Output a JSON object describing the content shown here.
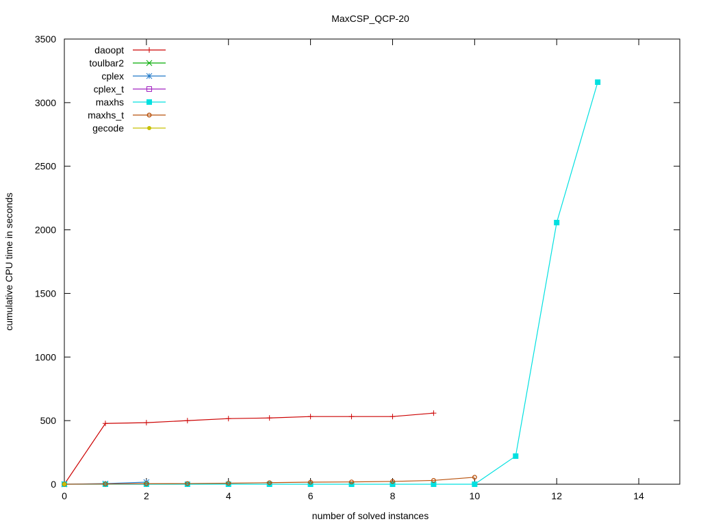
{
  "chart_data": {
    "type": "line",
    "title": "MaxCSP_QCP-20",
    "xlabel": "number of solved instances",
    "ylabel": "cumulative CPU time in seconds",
    "xlim": [
      0,
      15
    ],
    "ylim": [
      0,
      3500
    ],
    "xticks": [
      0,
      2,
      4,
      6,
      8,
      10,
      12,
      14
    ],
    "yticks": [
      0,
      500,
      1000,
      1500,
      2000,
      2500,
      3000,
      3500
    ],
    "grid": false,
    "legend_position": "top-left",
    "series": [
      {
        "name": "daoopt",
        "color": "#cc0000",
        "marker": "plus",
        "x": [
          0,
          1,
          2,
          3,
          4,
          5,
          6,
          7,
          8,
          9
        ],
        "values": [
          0,
          478,
          484,
          500,
          516,
          521,
          532,
          532,
          532,
          559
        ]
      },
      {
        "name": "toulbar2",
        "color": "#00aa00",
        "marker": "cross",
        "x": [
          0
        ],
        "values": [
          0
        ]
      },
      {
        "name": "cplex",
        "color": "#1f78c8",
        "marker": "star",
        "x": [
          0,
          1,
          2
        ],
        "values": [
          0,
          5,
          16
        ]
      },
      {
        "name": "cplex_t",
        "color": "#a020c0",
        "marker": "open-square",
        "x": [
          0
        ],
        "values": [
          0
        ]
      },
      {
        "name": "maxhs",
        "color": "#00e0e0",
        "marker": "filled-square",
        "x": [
          0,
          1,
          2,
          3,
          4,
          5,
          6,
          7,
          8,
          9,
          10,
          11,
          12,
          13
        ],
        "values": [
          0,
          0,
          0,
          0,
          0,
          0,
          0,
          0,
          0,
          0,
          0,
          221,
          2057,
          3161
        ]
      },
      {
        "name": "maxhs_t",
        "color": "#b8500a",
        "marker": "open-circle",
        "x": [
          0,
          1,
          2,
          3,
          4,
          5,
          6,
          7,
          8,
          9,
          10
        ],
        "values": [
          0,
          2,
          4,
          5,
          8,
          12,
          16,
          18,
          22,
          30,
          55
        ]
      },
      {
        "name": "gecode",
        "color": "#c8c000",
        "marker": "filled-circle",
        "x": [
          0
        ],
        "values": [
          0
        ]
      }
    ]
  }
}
